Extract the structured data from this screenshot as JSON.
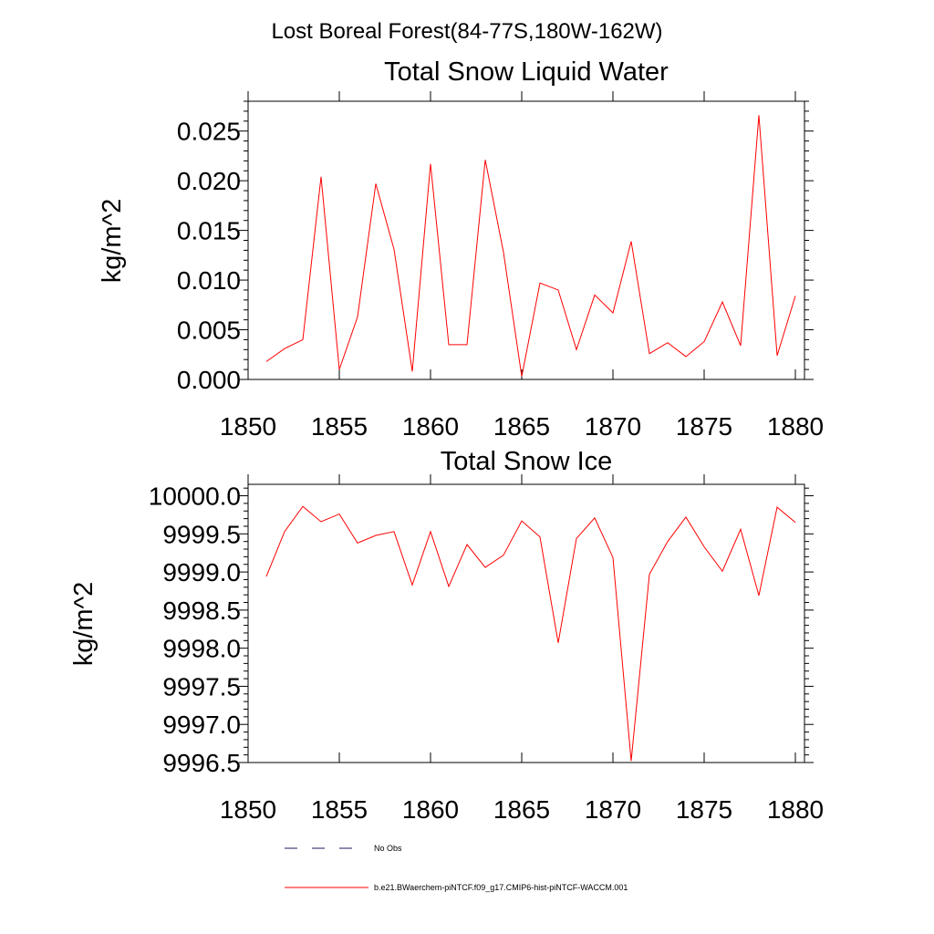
{
  "figure": {
    "suptitle": "Lost Boreal Forest(84-77S,180W-162W)",
    "legend": {
      "no_obs_label": "No Obs",
      "no_obs_color": "#1a1a66",
      "model_label": "b.e21.BWaerchem-piNTCF.f09_g17.CMIP6-hist-piNTCF-WACCM.001",
      "model_color": "#ff0000"
    }
  },
  "chart_data": [
    {
      "type": "line",
      "title": "Total Snow Liquid Water",
      "xlabel": "",
      "ylabel": "kg/m^2",
      "xlim": [
        1850,
        1880.5
      ],
      "ylim": [
        0.0,
        0.028
      ],
      "xticks": [
        1850,
        1855,
        1860,
        1865,
        1870,
        1875,
        1880
      ],
      "xtick_labels": [
        "1850",
        "1855",
        "1860",
        "1865",
        "1870",
        "1875",
        "1880"
      ],
      "yticks": [
        0.0,
        0.005,
        0.01,
        0.015,
        0.02,
        0.025
      ],
      "ytick_labels": [
        "0.000",
        "0.005",
        "0.010",
        "0.015",
        "0.020",
        "0.025"
      ],
      "grid": false,
      "series": [
        {
          "color": "#ff0000",
          "x": [
            1851,
            1852,
            1853,
            1854,
            1855,
            1856,
            1857,
            1858,
            1859,
            1860,
            1861,
            1862,
            1863,
            1864,
            1865,
            1866,
            1867,
            1868,
            1869,
            1870,
            1871,
            1872,
            1873,
            1874,
            1875,
            1876,
            1877,
            1878,
            1879,
            1880
          ],
          "values": [
            0.0018,
            0.0031,
            0.004,
            0.0204,
            0.001,
            0.0063,
            0.0197,
            0.0131,
            0.0008,
            0.0217,
            0.0035,
            0.0035,
            0.0221,
            0.0128,
            0.0003,
            0.0097,
            0.009,
            0.003,
            0.0085,
            0.0067,
            0.0139,
            0.0026,
            0.0037,
            0.0023,
            0.0038,
            0.0078,
            0.0034,
            0.0266,
            0.0024,
            0.0084
          ]
        }
      ]
    },
    {
      "type": "line",
      "title": "Total Snow Ice",
      "xlabel": "",
      "ylabel": "kg/m^2",
      "xlim": [
        1850,
        1880.5
      ],
      "ylim": [
        9996.5,
        10000.15
      ],
      "xticks": [
        1850,
        1855,
        1860,
        1865,
        1870,
        1875,
        1880
      ],
      "xtick_labels": [
        "1850",
        "1855",
        "1860",
        "1865",
        "1870",
        "1875",
        "1880"
      ],
      "yticks": [
        9996.5,
        9997.0,
        9997.5,
        9998.0,
        9998.5,
        9999.0,
        9999.5,
        10000.0
      ],
      "ytick_labels": [
        "9996.5",
        "9997.0",
        "9997.5",
        "9998.0",
        "9998.5",
        "9999.0",
        "9999.5",
        "10000.0"
      ],
      "grid": false,
      "series": [
        {
          "color": "#ff0000",
          "x": [
            1851,
            1852,
            1853,
            1854,
            1855,
            1856,
            1857,
            1858,
            1859,
            1860,
            1861,
            1862,
            1863,
            1864,
            1865,
            1866,
            1867,
            1868,
            1869,
            1870,
            1871,
            1872,
            1873,
            1874,
            1875,
            1876,
            1877,
            1878,
            1879,
            1880
          ],
          "values": [
            9998.94,
            9999.53,
            9999.86,
            9999.66,
            9999.76,
            9999.38,
            9999.48,
            9999.53,
            9998.83,
            9999.53,
            9998.81,
            9999.36,
            9999.06,
            9999.22,
            9999.67,
            9999.46,
            9998.07,
            9999.44,
            9999.71,
            9999.19,
            9996.52,
            9998.97,
            9999.4,
            9999.72,
            9999.33,
            9999.01,
            9999.56,
            9998.69,
            9999.85,
            9999.65
          ]
        }
      ]
    }
  ]
}
